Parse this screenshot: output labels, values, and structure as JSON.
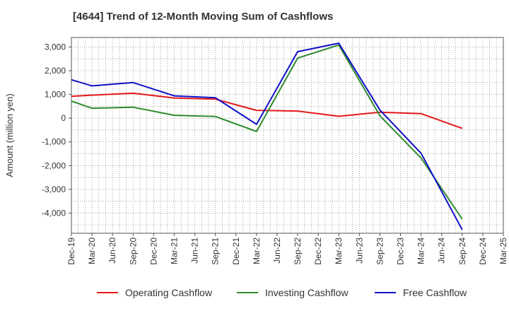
{
  "chart_data": {
    "type": "line",
    "title": "[4644]  Trend of 12-Month Moving Sum of Cashflows",
    "xlabel": "",
    "ylabel": "Amount (million yen)",
    "categories": [
      "Dec-19",
      "Mar-20",
      "Jun-20",
      "Sep-20",
      "Dec-20",
      "Mar-21",
      "Jun-21",
      "Sep-21",
      "Dec-21",
      "Mar-22",
      "Jun-22",
      "Sep-22",
      "Dec-22",
      "Mar-23",
      "Jun-23",
      "Sep-23",
      "Dec-23",
      "Mar-24",
      "Jun-24",
      "Sep-24",
      "Dec-24",
      "Mar-25"
    ],
    "ylim": [
      -4850,
      3400
    ],
    "yticks": [
      3000,
      2000,
      1000,
      0,
      -1000,
      -2000,
      -3000,
      -4000
    ],
    "ytick_labels": [
      "3,000",
      "2,000",
      "1,000",
      "0",
      "-1,000",
      "-2,000",
      "-3,000",
      "-4,000"
    ],
    "grid": true,
    "legend_position": "bottom",
    "series": [
      {
        "name": "Operating Cashflow",
        "color": "#e31a1c",
        "values": [
          920,
          970,
          null,
          1050,
          null,
          850,
          null,
          800,
          null,
          330,
          null,
          300,
          null,
          80,
          null,
          250,
          null,
          190,
          null,
          -430,
          null,
          null
        ]
      },
      {
        "name": "Investing Cashflow",
        "color": "#2e8b2e",
        "values": [
          720,
          420,
          null,
          460,
          null,
          120,
          null,
          70,
          null,
          -560,
          null,
          2530,
          null,
          3080,
          null,
          100,
          null,
          -1680,
          null,
          -4250,
          null,
          null
        ]
      },
      {
        "name": "Free Cashflow",
        "color": "#1010c8",
        "values": [
          1620,
          1360,
          null,
          1500,
          null,
          940,
          null,
          860,
          null,
          -260,
          null,
          2800,
          null,
          3160,
          null,
          340,
          null,
          -1480,
          null,
          -4700,
          null,
          null
        ]
      }
    ]
  }
}
